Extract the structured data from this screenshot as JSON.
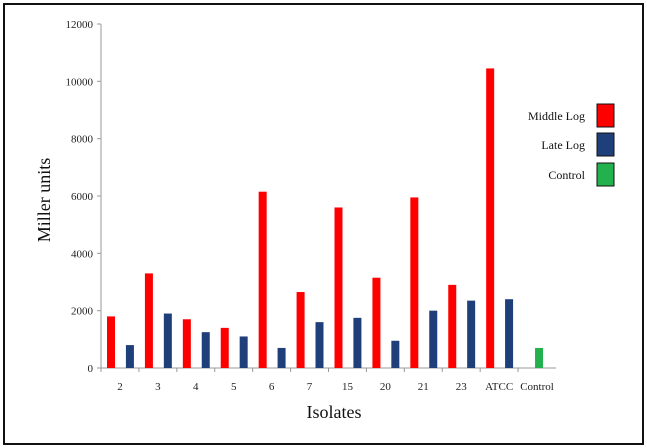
{
  "chart_data": {
    "type": "bar",
    "xlabel": "Isolates",
    "ylabel": "Miller units",
    "ylim": [
      0,
      12000
    ],
    "yticks": [
      0,
      2000,
      4000,
      6000,
      8000,
      10000,
      12000
    ],
    "grid": false,
    "legend_position": "right",
    "categories": [
      "2",
      "3",
      "4",
      "5",
      "6",
      "7",
      "15",
      "20",
      "21",
      "23",
      "ATCC",
      "Control"
    ],
    "series": [
      {
        "name": "Middle Log",
        "color": "#ff0000",
        "values": [
          1800,
          3300,
          1700,
          1400,
          6150,
          2650,
          5600,
          3150,
          5950,
          2900,
          10450,
          null
        ]
      },
      {
        "name": "Late Log",
        "color": "#1f3f7a",
        "values": [
          800,
          1900,
          1250,
          1100,
          700,
          1600,
          1750,
          950,
          2000,
          2350,
          2400,
          null
        ]
      },
      {
        "name": "Control",
        "color": "#22b14c",
        "values": [
          null,
          null,
          null,
          null,
          null,
          null,
          null,
          null,
          null,
          null,
          null,
          700
        ]
      }
    ]
  }
}
